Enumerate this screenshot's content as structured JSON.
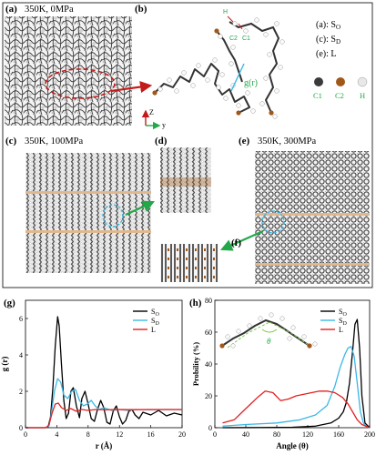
{
  "panels": {
    "a": {
      "letter": "(a)",
      "condition": "350K, 0MPa"
    },
    "b": {
      "letter": "(b)",
      "grlabel": "g(r)",
      "atom_H": "H",
      "atom_C2": "C2",
      "atom_C1": "C1",
      "axis_z": "Z",
      "axis_y": "y"
    },
    "c": {
      "letter": "(c)",
      "condition": "350K, 100MPa"
    },
    "d": {
      "letter": "(d)"
    },
    "e": {
      "letter": "(e)",
      "condition": "350K, 300MPa"
    },
    "f": {
      "letter": "(f)"
    },
    "g": {
      "letter": "(g)"
    },
    "h": {
      "letter": "(h)",
      "theta": "θ"
    }
  },
  "legend_box": {
    "rows": [
      {
        "tag": "(a):",
        "base": "S",
        "sub": "O"
      },
      {
        "tag": "(c):",
        "base": "S",
        "sub": "D"
      },
      {
        "tag": "(e):",
        "base": "L",
        "sub": ""
      }
    ],
    "atoms": [
      {
        "label": "C1",
        "color": "#3a3a3a"
      },
      {
        "label": "C2",
        "color": "#a0581a"
      },
      {
        "label": "H",
        "color": "#e8e8e8"
      }
    ]
  },
  "colors": {
    "so": "#000000",
    "sd": "#3cb8e6",
    "l": "#e32020",
    "arrow_red": "#c41a1a",
    "arrow_green": "#22a84a",
    "carbon2": "#a0581a"
  },
  "chart_data": [
    {
      "type": "line",
      "panel": "(g)",
      "xlabel": "r (Å)",
      "ylabel": "g (r)",
      "xlim": [
        0,
        20
      ],
      "ylim": [
        0,
        7
      ],
      "xticks": [
        0,
        4,
        8,
        12,
        16,
        20
      ],
      "yticks": [
        0,
        2,
        4,
        6
      ],
      "series": [
        {
          "name": "S_O",
          "legend_base": "S",
          "legend_sub": "O",
          "color": "#000000",
          "x": [
            0,
            2.5,
            2.9,
            3.2,
            3.5,
            3.8,
            4.1,
            4.3,
            4.6,
            4.9,
            5.2,
            5.5,
            5.8,
            6.1,
            6.5,
            6.9,
            7.2,
            7.6,
            8.0,
            8.4,
            8.8,
            9.2,
            9.6,
            10.0,
            10.4,
            10.8,
            11.2,
            11.6,
            12.0,
            12.4,
            12.8,
            13.2,
            13.6,
            14.0,
            14.5,
            15.0,
            16.0,
            17.0,
            18.0,
            19.0,
            20.0
          ],
          "y": [
            0,
            0,
            0.05,
            0.6,
            2.2,
            4.5,
            6.1,
            5.6,
            3.4,
            1.5,
            0.5,
            0.8,
            2.0,
            2.2,
            1.2,
            0.55,
            1.6,
            2.0,
            1.3,
            0.5,
            0.35,
            1.0,
            1.5,
            1.1,
            0.3,
            0.2,
            0.9,
            1.2,
            0.6,
            0.2,
            0.4,
            0.9,
            1.0,
            0.7,
            0.5,
            0.85,
            0.7,
            0.95,
            0.65,
            0.8,
            0.7
          ]
        },
        {
          "name": "S_D",
          "legend_base": "S",
          "legend_sub": "D",
          "color": "#3cb8e6",
          "x": [
            0,
            2.6,
            3.0,
            3.3,
            3.7,
            4.1,
            4.5,
            4.9,
            5.4,
            5.9,
            6.4,
            6.9,
            7.4,
            7.9,
            8.4,
            8.9,
            9.4,
            10.0,
            11.0,
            12.0,
            13.0,
            14.0,
            16.0,
            18.0,
            20.0
          ],
          "y": [
            0,
            0,
            0.1,
            0.8,
            2.0,
            2.7,
            2.5,
            1.8,
            1.6,
            2.0,
            2.1,
            1.5,
            1.2,
            1.3,
            1.5,
            1.2,
            1.0,
            1.1,
            0.95,
            1.0,
            0.95,
            1.0,
            0.98,
            1.0,
            0.99
          ]
        },
        {
          "name": "L",
          "legend_base": "L",
          "legend_sub": "",
          "color": "#e32020",
          "x": [
            0,
            2.6,
            3.0,
            3.4,
            3.8,
            4.2,
            4.6,
            5.2,
            5.8,
            6.5,
            7.2,
            8.0,
            9.0,
            10.0,
            12.0,
            14.0,
            16.0,
            18.0,
            20.0
          ],
          "y": [
            0,
            0,
            0.15,
            0.8,
            1.3,
            1.35,
            1.1,
            0.95,
            1.05,
            0.9,
            1.0,
            0.95,
            1.0,
            0.98,
            1.0,
            0.99,
            1.0,
            1.0,
            1.0
          ]
        }
      ]
    },
    {
      "type": "line",
      "panel": "(h)",
      "xlabel": "Angle (θ)",
      "ylabel": "Probility (%)",
      "xlim": [
        0,
        200
      ],
      "ylim": [
        0,
        80
      ],
      "xticks": [
        0,
        40,
        80,
        120,
        160,
        200
      ],
      "yticks": [
        0,
        20,
        40,
        60,
        80
      ],
      "series": [
        {
          "name": "S_O",
          "legend_base": "S",
          "legend_sub": "O",
          "color": "#000000",
          "x": [
            10,
            60,
            100,
            130,
            150,
            160,
            166,
            170,
            174,
            178,
            181,
            184,
            187,
            190,
            194,
            200
          ],
          "y": [
            0,
            0.1,
            0.3,
            1,
            3,
            6,
            10,
            16,
            28,
            48,
            65,
            68,
            50,
            20,
            3,
            0
          ]
        },
        {
          "name": "S_D",
          "legend_base": "S",
          "legend_sub": "D",
          "color": "#3cb8e6",
          "x": [
            10,
            40,
            80,
            110,
            130,
            145,
            155,
            162,
            168,
            172,
            176,
            180,
            184,
            188,
            192,
            196,
            200
          ],
          "y": [
            1,
            2,
            3,
            5,
            8,
            14,
            26,
            38,
            46,
            50,
            51,
            45,
            28,
            10,
            3,
            0.5,
            0
          ]
        },
        {
          "name": "L",
          "legend_base": "L",
          "legend_sub": "",
          "color": "#e32020",
          "x": [
            10,
            25,
            40,
            55,
            65,
            75,
            85,
            95,
            105,
            115,
            125,
            135,
            145,
            155,
            165,
            172,
            178,
            184,
            190,
            200
          ],
          "y": [
            3,
            5,
            12,
            19,
            23,
            22,
            17,
            18,
            20,
            21,
            22,
            23,
            23,
            22,
            19,
            15,
            10,
            5,
            2,
            0
          ]
        }
      ]
    }
  ]
}
